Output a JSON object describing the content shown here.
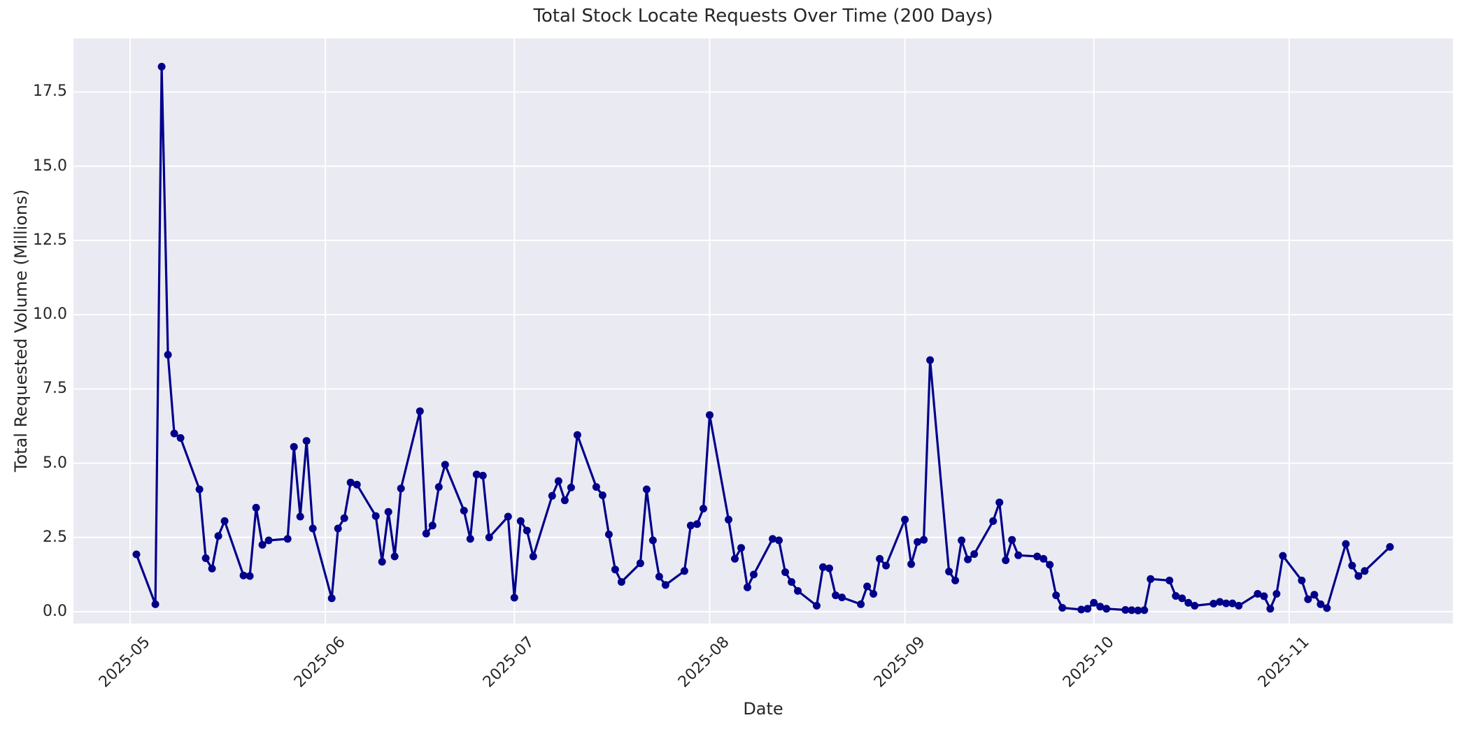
{
  "figure": {
    "background_color": "#FFFFFF",
    "axes_background_color": "#EAEAF2",
    "grid_color": "#FFFFFF",
    "text_color": "#262626"
  },
  "chart_data": {
    "type": "line",
    "title": "Total Stock Locate Requests Over Time (200 Days)",
    "xlabel": "Date",
    "ylabel": "Total Requested Volume (Millions)",
    "grid": "on",
    "legend_position": "none",
    "x_axis": {
      "tick_labels": [
        "2025-05",
        "2025-06",
        "2025-07",
        "2025-08",
        "2025-09",
        "2025-10",
        "2025-11"
      ],
      "tick_dates": [
        "2025-05-01",
        "2025-06-01",
        "2025-07-01",
        "2025-08-01",
        "2025-09-01",
        "2025-10-01",
        "2025-11-01"
      ]
    },
    "y_axis": {
      "tick_labels": [
        "0.0",
        "2.5",
        "5.0",
        "7.5",
        "10.0",
        "12.5",
        "15.0",
        "17.5"
      ],
      "tick_values": [
        0.0,
        2.5,
        5.0,
        7.5,
        10.0,
        12.5,
        15.0,
        17.5
      ]
    },
    "xlim": [
      "2025-04-22",
      "2025-11-27"
    ],
    "ylim": [
      -0.4,
      19.3
    ],
    "series": [
      {
        "name": "Total Stock Locate Requests",
        "color": "#00008B",
        "marker": "circle",
        "line_width": 3.2,
        "marker_radius": 5.5,
        "points": [
          [
            "2025-05-02",
            1.93
          ],
          [
            "2025-05-05",
            0.25
          ],
          [
            "2025-05-06",
            18.35
          ],
          [
            "2025-05-07",
            8.65
          ],
          [
            "2025-05-08",
            6.0
          ],
          [
            "2025-05-09",
            5.85
          ],
          [
            "2025-05-12",
            4.12
          ],
          [
            "2025-05-13",
            1.8
          ],
          [
            "2025-05-14",
            1.45
          ],
          [
            "2025-05-15",
            2.55
          ],
          [
            "2025-05-16",
            3.05
          ],
          [
            "2025-05-19",
            1.22
          ],
          [
            "2025-05-20",
            1.2
          ],
          [
            "2025-05-21",
            3.5
          ],
          [
            "2025-05-22",
            2.25
          ],
          [
            "2025-05-23",
            2.4
          ],
          [
            "2025-05-26",
            2.45
          ],
          [
            "2025-05-27",
            5.55
          ],
          [
            "2025-05-28",
            3.2
          ],
          [
            "2025-05-29",
            5.75
          ],
          [
            "2025-05-30",
            2.8
          ],
          [
            "2025-06-02",
            0.45
          ],
          [
            "2025-06-03",
            2.8
          ],
          [
            "2025-06-04",
            3.15
          ],
          [
            "2025-06-05",
            4.35
          ],
          [
            "2025-06-06",
            4.28
          ],
          [
            "2025-06-09",
            3.22
          ],
          [
            "2025-06-10",
            1.68
          ],
          [
            "2025-06-11",
            3.36
          ],
          [
            "2025-06-12",
            1.86
          ],
          [
            "2025-06-13",
            4.15
          ],
          [
            "2025-06-16",
            6.75
          ],
          [
            "2025-06-17",
            2.63
          ],
          [
            "2025-06-18",
            2.9
          ],
          [
            "2025-06-19",
            4.2
          ],
          [
            "2025-06-20",
            4.95
          ],
          [
            "2025-06-23",
            3.4
          ],
          [
            "2025-06-24",
            2.45
          ],
          [
            "2025-06-25",
            4.62
          ],
          [
            "2025-06-26",
            4.58
          ],
          [
            "2025-06-27",
            2.5
          ],
          [
            "2025-06-30",
            3.2
          ],
          [
            "2025-07-01",
            0.47
          ],
          [
            "2025-07-02",
            3.05
          ],
          [
            "2025-07-03",
            2.73
          ],
          [
            "2025-07-04",
            1.86
          ],
          [
            "2025-07-07",
            3.9
          ],
          [
            "2025-07-08",
            4.4
          ],
          [
            "2025-07-09",
            3.75
          ],
          [
            "2025-07-10",
            4.18
          ],
          [
            "2025-07-11",
            5.95
          ],
          [
            "2025-07-14",
            4.2
          ],
          [
            "2025-07-15",
            3.92
          ],
          [
            "2025-07-16",
            2.6
          ],
          [
            "2025-07-17",
            1.42
          ],
          [
            "2025-07-18",
            1.0
          ],
          [
            "2025-07-21",
            1.63
          ],
          [
            "2025-07-22",
            4.12
          ],
          [
            "2025-07-23",
            2.4
          ],
          [
            "2025-07-24",
            1.18
          ],
          [
            "2025-07-25",
            0.9
          ],
          [
            "2025-07-28",
            1.37
          ],
          [
            "2025-07-29",
            2.9
          ],
          [
            "2025-07-30",
            2.95
          ],
          [
            "2025-07-31",
            3.47
          ],
          [
            "2025-08-01",
            6.62
          ],
          [
            "2025-08-04",
            3.1
          ],
          [
            "2025-08-05",
            1.78
          ],
          [
            "2025-08-06",
            2.15
          ],
          [
            "2025-08-07",
            0.82
          ],
          [
            "2025-08-08",
            1.25
          ],
          [
            "2025-08-11",
            2.45
          ],
          [
            "2025-08-12",
            2.4
          ],
          [
            "2025-08-13",
            1.33
          ],
          [
            "2025-08-14",
            1.0
          ],
          [
            "2025-08-15",
            0.7
          ],
          [
            "2025-08-18",
            0.2
          ],
          [
            "2025-08-19",
            1.5
          ],
          [
            "2025-08-20",
            1.46
          ],
          [
            "2025-08-21",
            0.55
          ],
          [
            "2025-08-22",
            0.48
          ],
          [
            "2025-08-25",
            0.25
          ],
          [
            "2025-08-26",
            0.85
          ],
          [
            "2025-08-27",
            0.6
          ],
          [
            "2025-08-28",
            1.78
          ],
          [
            "2025-08-29",
            1.55
          ],
          [
            "2025-09-01",
            3.1
          ],
          [
            "2025-09-02",
            1.6
          ],
          [
            "2025-09-03",
            2.35
          ],
          [
            "2025-09-04",
            2.42
          ],
          [
            "2025-09-05",
            8.47
          ],
          [
            "2025-09-08",
            1.35
          ],
          [
            "2025-09-09",
            1.05
          ],
          [
            "2025-09-10",
            2.4
          ],
          [
            "2025-09-11",
            1.76
          ],
          [
            "2025-09-12",
            1.94
          ],
          [
            "2025-09-15",
            3.05
          ],
          [
            "2025-09-16",
            3.68
          ],
          [
            "2025-09-17",
            1.73
          ],
          [
            "2025-09-18",
            2.42
          ],
          [
            "2025-09-19",
            1.9
          ],
          [
            "2025-09-22",
            1.86
          ],
          [
            "2025-09-23",
            1.78
          ],
          [
            "2025-09-24",
            1.58
          ],
          [
            "2025-09-25",
            0.55
          ],
          [
            "2025-09-26",
            0.13
          ],
          [
            "2025-09-29",
            0.07
          ],
          [
            "2025-09-30",
            0.1
          ],
          [
            "2025-10-01",
            0.3
          ],
          [
            "2025-10-02",
            0.17
          ],
          [
            "2025-10-03",
            0.1
          ],
          [
            "2025-10-06",
            0.06
          ],
          [
            "2025-10-07",
            0.05
          ],
          [
            "2025-10-08",
            0.04
          ],
          [
            "2025-10-09",
            0.05
          ],
          [
            "2025-10-10",
            1.1
          ],
          [
            "2025-10-13",
            1.05
          ],
          [
            "2025-10-14",
            0.53
          ],
          [
            "2025-10-15",
            0.45
          ],
          [
            "2025-10-16",
            0.3
          ],
          [
            "2025-10-17",
            0.2
          ],
          [
            "2025-10-20",
            0.27
          ],
          [
            "2025-10-21",
            0.33
          ],
          [
            "2025-10-22",
            0.28
          ],
          [
            "2025-10-23",
            0.28
          ],
          [
            "2025-10-24",
            0.2
          ],
          [
            "2025-10-27",
            0.6
          ],
          [
            "2025-10-28",
            0.52
          ],
          [
            "2025-10-29",
            0.1
          ],
          [
            "2025-10-30",
            0.6
          ],
          [
            "2025-10-31",
            1.88
          ],
          [
            "2025-11-03",
            1.05
          ],
          [
            "2025-11-04",
            0.42
          ],
          [
            "2025-11-05",
            0.57
          ],
          [
            "2025-11-06",
            0.25
          ],
          [
            "2025-11-07",
            0.12
          ],
          [
            "2025-11-10",
            2.28
          ],
          [
            "2025-11-11",
            1.55
          ],
          [
            "2025-11-12",
            1.2
          ],
          [
            "2025-11-13",
            1.37
          ],
          [
            "2025-11-17",
            2.18
          ]
        ]
      }
    ]
  }
}
